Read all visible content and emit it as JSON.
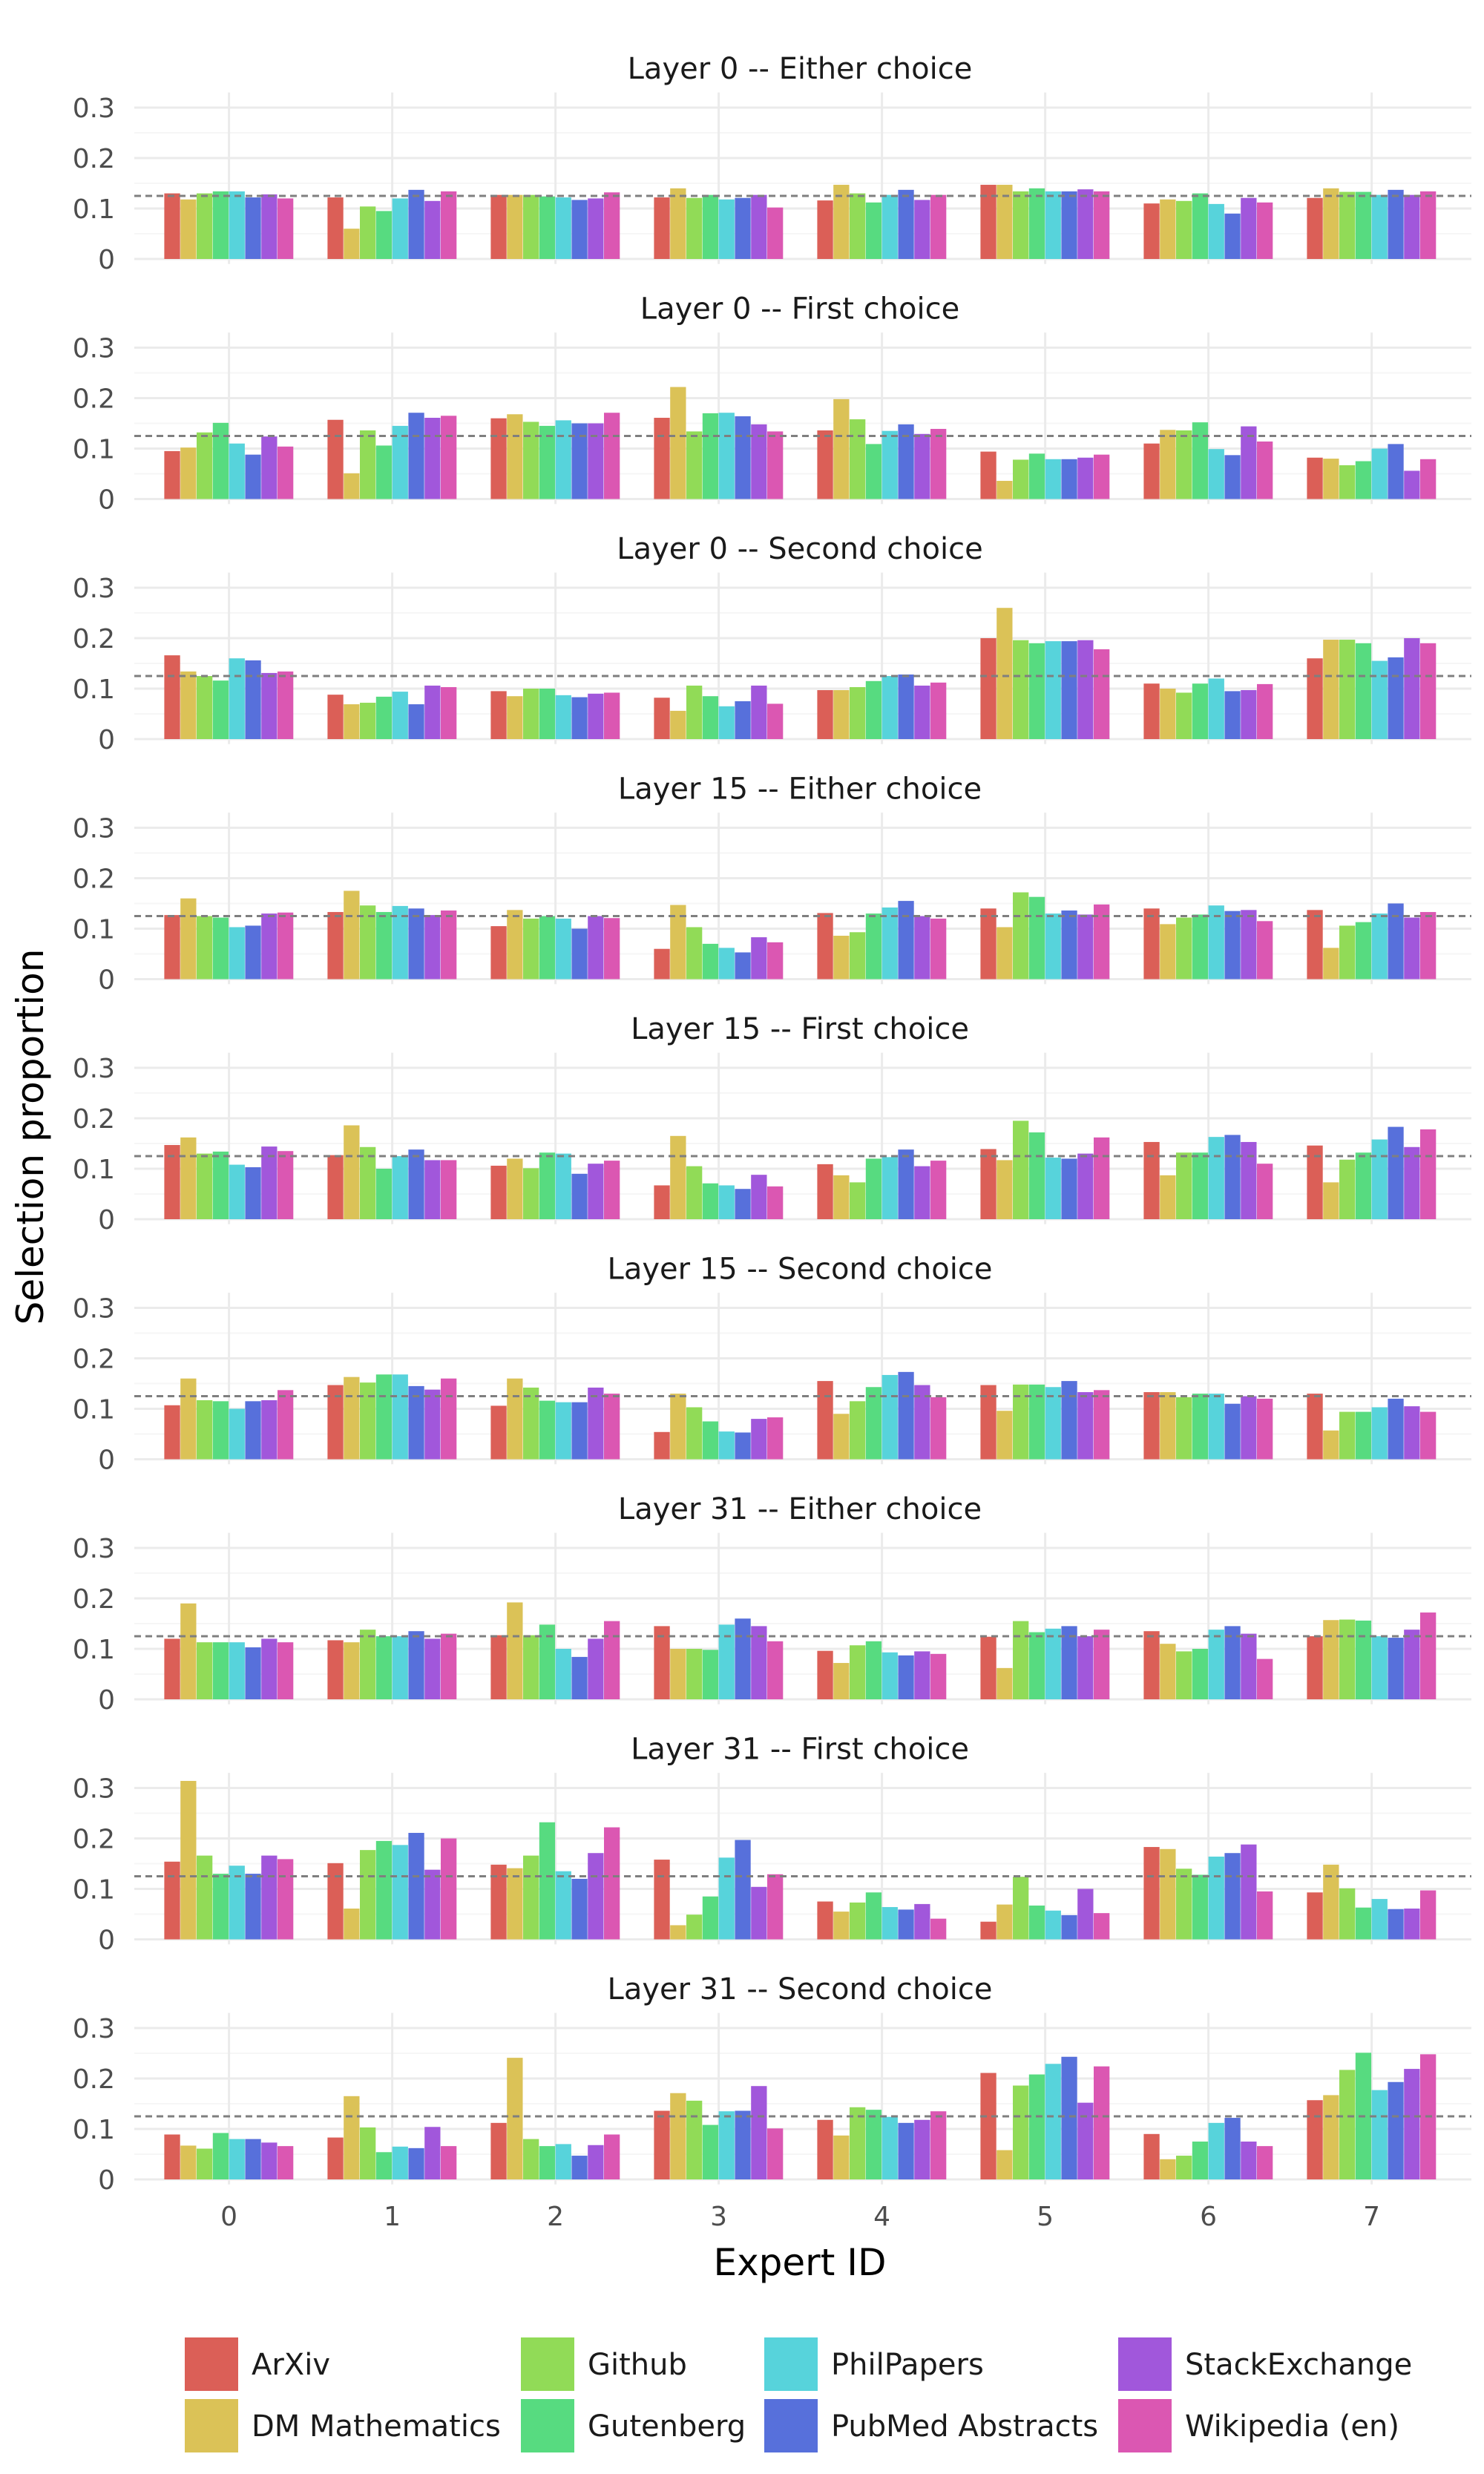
{
  "chart_data": {
    "type": "bar",
    "xlabel": "Expert ID",
    "ylabel": "Selection proportion",
    "ylim": [
      0,
      0.3
    ],
    "yticks": [
      "0",
      "0.1",
      "0.2",
      "0.3"
    ],
    "categories": [
      "0",
      "1",
      "2",
      "3",
      "4",
      "5",
      "6",
      "7"
    ],
    "reference_line": 0.125,
    "grid": true,
    "legend_position": "bottom",
    "series_names": [
      "ArXiv",
      "DM Mathematics",
      "Github",
      "Gutenberg",
      "PhilPapers",
      "PubMed Abstracts",
      "StackExchange",
      "Wikipedia (en)"
    ],
    "colors": [
      "#db5f57",
      "#dbc257",
      "#91db57",
      "#57db80",
      "#57d3db",
      "#5770db",
      "#a157db",
      "#db57b2"
    ],
    "panels": [
      {
        "title": "Layer 0 -- Either choice",
        "values": [
          [
            0.13,
            0.118,
            0.13,
            0.134,
            0.134,
            0.122,
            0.128,
            0.12
          ],
          [
            0.122,
            0.06,
            0.104,
            0.095,
            0.12,
            0.137,
            0.115,
            0.134
          ],
          [
            0.127,
            0.127,
            0.127,
            0.124,
            0.122,
            0.117,
            0.12,
            0.132
          ],
          [
            0.122,
            0.14,
            0.121,
            0.127,
            0.118,
            0.121,
            0.127,
            0.102
          ],
          [
            0.116,
            0.147,
            0.13,
            0.112,
            0.127,
            0.137,
            0.117,
            0.127
          ],
          [
            0.147,
            0.147,
            0.134,
            0.14,
            0.134,
            0.134,
            0.138,
            0.134
          ],
          [
            0.11,
            0.118,
            0.115,
            0.13,
            0.109,
            0.09,
            0.121,
            0.112
          ],
          [
            0.121,
            0.14,
            0.133,
            0.133,
            0.127,
            0.137,
            0.127,
            0.134
          ]
        ]
      },
      {
        "title": "Layer 0 -- First choice",
        "values": [
          [
            0.095,
            0.102,
            0.132,
            0.151,
            0.11,
            0.088,
            0.124,
            0.104
          ],
          [
            0.157,
            0.051,
            0.136,
            0.106,
            0.145,
            0.171,
            0.161,
            0.165
          ],
          [
            0.16,
            0.168,
            0.153,
            0.145,
            0.156,
            0.15,
            0.15,
            0.171
          ],
          [
            0.161,
            0.222,
            0.134,
            0.17,
            0.171,
            0.164,
            0.148,
            0.134
          ],
          [
            0.136,
            0.198,
            0.158,
            0.109,
            0.135,
            0.148,
            0.129,
            0.139
          ],
          [
            0.094,
            0.036,
            0.078,
            0.09,
            0.079,
            0.079,
            0.082,
            0.088
          ],
          [
            0.11,
            0.137,
            0.136,
            0.152,
            0.099,
            0.087,
            0.144,
            0.114
          ],
          [
            0.082,
            0.08,
            0.067,
            0.075,
            0.1,
            0.109,
            0.056,
            0.079
          ]
        ]
      },
      {
        "title": "Layer 0 -- Second choice",
        "values": [
          [
            0.166,
            0.134,
            0.125,
            0.116,
            0.16,
            0.156,
            0.131,
            0.134
          ],
          [
            0.088,
            0.069,
            0.072,
            0.084,
            0.094,
            0.069,
            0.106,
            0.103
          ],
          [
            0.095,
            0.085,
            0.1,
            0.1,
            0.087,
            0.083,
            0.09,
            0.092
          ],
          [
            0.082,
            0.056,
            0.106,
            0.085,
            0.065,
            0.075,
            0.106,
            0.07
          ],
          [
            0.097,
            0.097,
            0.103,
            0.115,
            0.125,
            0.128,
            0.106,
            0.112
          ],
          [
            0.2,
            0.26,
            0.196,
            0.19,
            0.194,
            0.194,
            0.196,
            0.178
          ],
          [
            0.11,
            0.1,
            0.092,
            0.11,
            0.12,
            0.095,
            0.097,
            0.109
          ],
          [
            0.16,
            0.197,
            0.197,
            0.19,
            0.155,
            0.162,
            0.2,
            0.19
          ]
        ]
      },
      {
        "title": "Layer 15 -- Either choice",
        "values": [
          [
            0.127,
            0.16,
            0.125,
            0.122,
            0.103,
            0.106,
            0.13,
            0.132
          ],
          [
            0.133,
            0.175,
            0.146,
            0.133,
            0.145,
            0.14,
            0.127,
            0.136
          ],
          [
            0.105,
            0.137,
            0.12,
            0.125,
            0.12,
            0.1,
            0.125,
            0.121
          ],
          [
            0.06,
            0.147,
            0.103,
            0.07,
            0.062,
            0.053,
            0.083,
            0.073
          ],
          [
            0.131,
            0.086,
            0.093,
            0.13,
            0.142,
            0.155,
            0.125,
            0.12
          ],
          [
            0.14,
            0.103,
            0.172,
            0.163,
            0.13,
            0.136,
            0.128,
            0.148
          ],
          [
            0.14,
            0.109,
            0.122,
            0.128,
            0.146,
            0.135,
            0.137,
            0.115
          ],
          [
            0.137,
            0.062,
            0.106,
            0.113,
            0.13,
            0.15,
            0.122,
            0.133
          ]
        ]
      },
      {
        "title": "Layer 15 -- First choice",
        "values": [
          [
            0.147,
            0.162,
            0.13,
            0.134,
            0.108,
            0.103,
            0.144,
            0.135
          ],
          [
            0.127,
            0.186,
            0.143,
            0.1,
            0.125,
            0.138,
            0.117,
            0.117
          ],
          [
            0.106,
            0.12,
            0.101,
            0.132,
            0.13,
            0.09,
            0.11,
            0.116
          ],
          [
            0.067,
            0.165,
            0.105,
            0.071,
            0.067,
            0.06,
            0.088,
            0.065
          ],
          [
            0.109,
            0.087,
            0.073,
            0.12,
            0.123,
            0.138,
            0.105,
            0.116
          ],
          [
            0.139,
            0.117,
            0.195,
            0.172,
            0.122,
            0.12,
            0.13,
            0.162
          ],
          [
            0.153,
            0.087,
            0.132,
            0.132,
            0.163,
            0.167,
            0.153,
            0.11
          ],
          [
            0.146,
            0.073,
            0.118,
            0.132,
            0.158,
            0.183,
            0.143,
            0.178
          ]
        ]
      },
      {
        "title": "Layer 15 -- Second choice",
        "values": [
          [
            0.107,
            0.16,
            0.117,
            0.115,
            0.1,
            0.115,
            0.117,
            0.137
          ],
          [
            0.147,
            0.163,
            0.152,
            0.168,
            0.168,
            0.145,
            0.138,
            0.16
          ],
          [
            0.106,
            0.16,
            0.142,
            0.116,
            0.113,
            0.113,
            0.142,
            0.13
          ],
          [
            0.054,
            0.13,
            0.103,
            0.075,
            0.055,
            0.053,
            0.08,
            0.083
          ],
          [
            0.155,
            0.09,
            0.115,
            0.143,
            0.167,
            0.173,
            0.147,
            0.123
          ],
          [
            0.147,
            0.096,
            0.148,
            0.148,
            0.143,
            0.155,
            0.133,
            0.137
          ],
          [
            0.133,
            0.133,
            0.123,
            0.13,
            0.13,
            0.11,
            0.125,
            0.12
          ],
          [
            0.13,
            0.057,
            0.094,
            0.094,
            0.103,
            0.12,
            0.105,
            0.094
          ]
        ]
      },
      {
        "title": "Layer 31 -- Either choice",
        "values": [
          [
            0.12,
            0.19,
            0.113,
            0.113,
            0.113,
            0.103,
            0.12,
            0.113
          ],
          [
            0.117,
            0.113,
            0.138,
            0.125,
            0.125,
            0.135,
            0.12,
            0.13
          ],
          [
            0.127,
            0.192,
            0.127,
            0.148,
            0.1,
            0.084,
            0.12,
            0.155
          ],
          [
            0.145,
            0.1,
            0.1,
            0.098,
            0.148,
            0.16,
            0.145,
            0.115
          ],
          [
            0.096,
            0.072,
            0.107,
            0.115,
            0.093,
            0.087,
            0.095,
            0.09
          ],
          [
            0.124,
            0.062,
            0.155,
            0.133,
            0.14,
            0.145,
            0.125,
            0.138
          ],
          [
            0.135,
            0.11,
            0.095,
            0.1,
            0.138,
            0.145,
            0.13,
            0.08
          ],
          [
            0.125,
            0.157,
            0.158,
            0.156,
            0.125,
            0.122,
            0.138,
            0.172
          ]
        ]
      },
      {
        "title": "Layer 31 -- First choice",
        "values": [
          [
            0.154,
            0.314,
            0.166,
            0.13,
            0.146,
            0.13,
            0.166,
            0.159
          ],
          [
            0.151,
            0.061,
            0.177,
            0.195,
            0.187,
            0.211,
            0.138,
            0.2
          ],
          [
            0.148,
            0.141,
            0.166,
            0.232,
            0.135,
            0.12,
            0.171,
            0.222
          ],
          [
            0.158,
            0.028,
            0.049,
            0.085,
            0.162,
            0.197,
            0.104,
            0.129
          ],
          [
            0.075,
            0.055,
            0.073,
            0.093,
            0.064,
            0.059,
            0.07,
            0.041
          ],
          [
            0.035,
            0.069,
            0.124,
            0.067,
            0.057,
            0.048,
            0.1,
            0.052
          ],
          [
            0.183,
            0.179,
            0.14,
            0.128,
            0.164,
            0.171,
            0.188,
            0.095
          ],
          [
            0.093,
            0.148,
            0.101,
            0.063,
            0.08,
            0.06,
            0.061,
            0.097
          ]
        ]
      },
      {
        "title": "Layer 31 -- Second choice",
        "values": [
          [
            0.089,
            0.067,
            0.061,
            0.092,
            0.08,
            0.08,
            0.073,
            0.066
          ],
          [
            0.083,
            0.165,
            0.103,
            0.054,
            0.065,
            0.062,
            0.104,
            0.066
          ],
          [
            0.112,
            0.241,
            0.08,
            0.066,
            0.07,
            0.047,
            0.068,
            0.089
          ],
          [
            0.136,
            0.171,
            0.156,
            0.108,
            0.135,
            0.136,
            0.185,
            0.101
          ],
          [
            0.118,
            0.087,
            0.143,
            0.138,
            0.124,
            0.112,
            0.118,
            0.135
          ],
          [
            0.211,
            0.058,
            0.186,
            0.208,
            0.229,
            0.243,
            0.152,
            0.224
          ],
          [
            0.09,
            0.04,
            0.047,
            0.075,
            0.112,
            0.122,
            0.075,
            0.066
          ],
          [
            0.157,
            0.167,
            0.217,
            0.251,
            0.177,
            0.193,
            0.219,
            0.248
          ]
        ]
      }
    ]
  }
}
